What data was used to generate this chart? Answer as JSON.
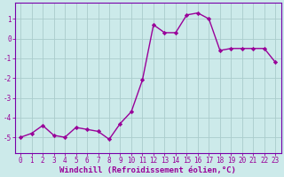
{
  "x": [
    0,
    1,
    2,
    3,
    4,
    5,
    6,
    7,
    8,
    9,
    10,
    11,
    12,
    13,
    14,
    15,
    16,
    17,
    18,
    19,
    20,
    21,
    22,
    23
  ],
  "y": [
    -5.0,
    -4.8,
    -4.4,
    -4.9,
    -5.0,
    -4.5,
    -4.6,
    -4.7,
    -5.1,
    -4.3,
    -3.7,
    -2.1,
    0.7,
    0.3,
    0.3,
    1.2,
    1.3,
    1.0,
    -0.6,
    -0.5,
    -0.5,
    -0.5,
    -0.5,
    -1.2
  ],
  "line_color": "#990099",
  "marker": "D",
  "marker_size": 2.2,
  "bg_color": "#cceaea",
  "grid_color": "#aacccc",
  "xlabel": "Windchill (Refroidissement éolien,°C)",
  "xlim": [
    -0.5,
    23.5
  ],
  "ylim": [
    -5.8,
    1.8
  ],
  "yticks": [
    -5,
    -4,
    -3,
    -2,
    -1,
    0,
    1
  ],
  "xticks": [
    0,
    1,
    2,
    3,
    4,
    5,
    6,
    7,
    8,
    9,
    10,
    11,
    12,
    13,
    14,
    15,
    16,
    17,
    18,
    19,
    20,
    21,
    22,
    23
  ],
  "tick_fontsize": 5.5,
  "xlabel_fontsize": 6.5,
  "line_width": 1.0,
  "spine_color": "#7700aa"
}
